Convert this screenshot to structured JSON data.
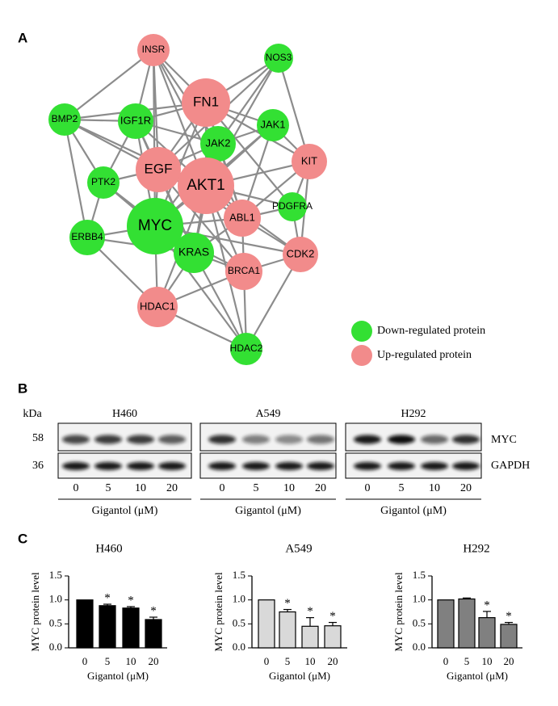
{
  "panel_labels": [
    "A",
    "B",
    "C"
  ],
  "network": {
    "nodes": [
      {
        "label": "INSR",
        "color": "#f28b8b"
      },
      {
        "label": "NOS3",
        "color": "#33e033"
      },
      {
        "label": "FN1",
        "color": "#f28b8b"
      },
      {
        "label": "BMP2",
        "color": "#33e033"
      },
      {
        "label": "IGF1R",
        "color": "#33e033"
      },
      {
        "label": "JAK1",
        "color": "#33e033"
      },
      {
        "label": "JAK2",
        "color": "#33e033"
      },
      {
        "label": "KIT",
        "color": "#f28b8b"
      },
      {
        "label": "EGF",
        "color": "#f28b8b"
      },
      {
        "label": "AKT1",
        "color": "#f28b8b"
      },
      {
        "label": "PTK2",
        "color": "#33e033"
      },
      {
        "label": "PDGFRA",
        "color": "#33e033"
      },
      {
        "label": "ABL1",
        "color": "#f28b8b"
      },
      {
        "label": "MYC",
        "color": "#33e033"
      },
      {
        "label": "ERBB4",
        "color": "#33e033"
      },
      {
        "label": "KRAS",
        "color": "#33e033"
      },
      {
        "label": "CDK2",
        "color": "#f28b8b"
      },
      {
        "label": "BRCA1",
        "color": "#f28b8b"
      },
      {
        "label": "HDAC1",
        "color": "#f28b8b"
      },
      {
        "label": "HDAC2",
        "color": "#33e033"
      }
    ],
    "legend": [
      {
        "label": "Down-regulated protein",
        "color": "#33e033"
      },
      {
        "label": "Up-regulated protein",
        "color": "#f28b8b"
      }
    ]
  },
  "blot": {
    "unit": "kDa",
    "cell_lines": [
      "H460",
      "A549",
      "H292"
    ],
    "markers": [
      58,
      36
    ],
    "proteins": [
      "MYC",
      "GAPDH"
    ],
    "lanes": [
      "0",
      "5",
      "10",
      "20"
    ],
    "xlabel": "Gigantol (μM)"
  },
  "chart_data": [
    {
      "type": "bar",
      "title": "H460",
      "ylabel": "MYC protein level",
      "xlabel": "Gigantol (μM)",
      "categories": [
        "0",
        "5",
        "10",
        "20"
      ],
      "values": [
        1.0,
        0.88,
        0.83,
        0.59
      ],
      "errors": [
        null,
        0.03,
        0.03,
        0.05
      ],
      "annotations": [
        null,
        "*",
        "*",
        "*"
      ],
      "color": "#000000",
      "ylim": [
        0,
        1.5
      ],
      "yticks": [
        {
          "value": 0,
          "label": "0.0"
        },
        {
          "value": 0.5,
          "label": "0.5"
        },
        {
          "value": 1,
          "label": "1.0"
        },
        {
          "value": 1.5,
          "label": "1.5"
        }
      ]
    },
    {
      "type": "bar",
      "title": "A549",
      "ylabel": "MYC protein level",
      "xlabel": "Gigantol (μM)",
      "categories": [
        "0",
        "5",
        "10",
        "20"
      ],
      "values": [
        1.0,
        0.75,
        0.45,
        0.46
      ],
      "errors": [
        null,
        0.05,
        0.18,
        0.07
      ],
      "annotations": [
        null,
        "*",
        "*",
        "*"
      ],
      "color": "#d9d9d9",
      "ylim": [
        0,
        1.5
      ],
      "yticks": [
        {
          "value": 0,
          "label": "0.0"
        },
        {
          "value": 0.5,
          "label": "0.5"
        },
        {
          "value": 1,
          "label": "1.0"
        },
        {
          "value": 1.5,
          "label": "1.5"
        }
      ]
    },
    {
      "type": "bar",
      "title": "H292",
      "ylabel": "MYC protein level",
      "xlabel": "Gigantol (μM)",
      "categories": [
        "0",
        "5",
        "10",
        "20"
      ],
      "values": [
        1.0,
        1.02,
        0.63,
        0.49
      ],
      "errors": [
        null,
        0.02,
        0.13,
        0.04
      ],
      "annotations": [
        null,
        null,
        "*",
        "*"
      ],
      "color": "#808080",
      "ylim": [
        0,
        1.5
      ],
      "yticks": [
        {
          "value": 0,
          "label": "0.0"
        },
        {
          "value": 0.5,
          "label": "0.5"
        },
        {
          "value": 1,
          "label": "1.0"
        },
        {
          "value": 1.5,
          "label": "1.5"
        }
      ]
    }
  ]
}
